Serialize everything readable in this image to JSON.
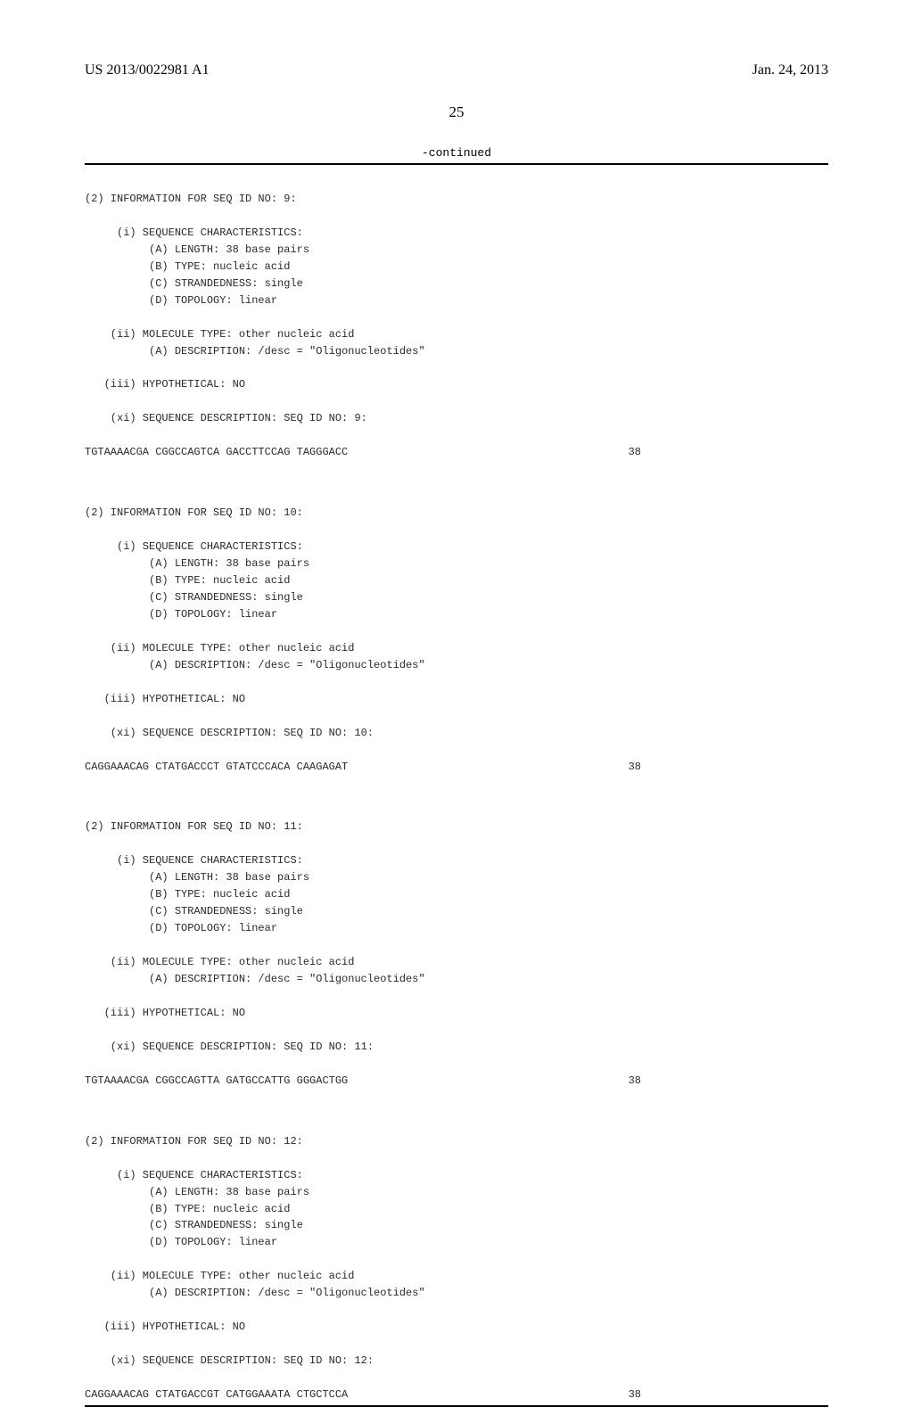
{
  "header": {
    "pub_number": "US 2013/0022981 A1",
    "pub_date": "Jan. 24, 2013"
  },
  "page_number": "25",
  "continued_label": "-continued",
  "sequences": [
    {
      "info_header": "(2) INFORMATION FOR SEQ ID NO: 9:",
      "char_header": "     (i) SEQUENCE CHARACTERISTICS:",
      "length": "          (A) LENGTH: 38 base pairs",
      "type": "          (B) TYPE: nucleic acid",
      "strand": "          (C) STRANDEDNESS: single",
      "topology": "          (D) TOPOLOGY: linear",
      "mol_type": "    (ii) MOLECULE TYPE: other nucleic acid",
      "desc": "          (A) DESCRIPTION: /desc = \"Oligonucleotides\"",
      "hypothetical": "   (iii) HYPOTHETICAL: NO",
      "seq_desc": "    (xi) SEQUENCE DESCRIPTION: SEQ ID NO: 9:",
      "sequence": "TGTAAAACGA CGGCCAGTCA GACCTTCCAG TAGGGACC",
      "seq_length": "38"
    },
    {
      "info_header": "(2) INFORMATION FOR SEQ ID NO: 10:",
      "char_header": "     (i) SEQUENCE CHARACTERISTICS:",
      "length": "          (A) LENGTH: 38 base pairs",
      "type": "          (B) TYPE: nucleic acid",
      "strand": "          (C) STRANDEDNESS: single",
      "topology": "          (D) TOPOLOGY: linear",
      "mol_type": "    (ii) MOLECULE TYPE: other nucleic acid",
      "desc": "          (A) DESCRIPTION: /desc = \"Oligonucleotides\"",
      "hypothetical": "   (iii) HYPOTHETICAL: NO",
      "seq_desc": "    (xi) SEQUENCE DESCRIPTION: SEQ ID NO: 10:",
      "sequence": "CAGGAAACAG CTATGACCCT GTATCCCACA CAAGAGAT",
      "seq_length": "38"
    },
    {
      "info_header": "(2) INFORMATION FOR SEQ ID NO: 11:",
      "char_header": "     (i) SEQUENCE CHARACTERISTICS:",
      "length": "          (A) LENGTH: 38 base pairs",
      "type": "          (B) TYPE: nucleic acid",
      "strand": "          (C) STRANDEDNESS: single",
      "topology": "          (D) TOPOLOGY: linear",
      "mol_type": "    (ii) MOLECULE TYPE: other nucleic acid",
      "desc": "          (A) DESCRIPTION: /desc = \"Oligonucleotides\"",
      "hypothetical": "   (iii) HYPOTHETICAL: NO",
      "seq_desc": "    (xi) SEQUENCE DESCRIPTION: SEQ ID NO: 11:",
      "sequence": "TGTAAAACGA CGGCCAGTTA GATGCCATTG GGGACTGG",
      "seq_length": "38"
    },
    {
      "info_header": "(2) INFORMATION FOR SEQ ID NO: 12:",
      "char_header": "     (i) SEQUENCE CHARACTERISTICS:",
      "length": "          (A) LENGTH: 38 base pairs",
      "type": "          (B) TYPE: nucleic acid",
      "strand": "          (C) STRANDEDNESS: single",
      "topology": "          (D) TOPOLOGY: linear",
      "mol_type": "    (ii) MOLECULE TYPE: other nucleic acid",
      "desc": "          (A) DESCRIPTION: /desc = \"Oligonucleotides\"",
      "hypothetical": "   (iii) HYPOTHETICAL: NO",
      "seq_desc": "    (xi) SEQUENCE DESCRIPTION: SEQ ID NO: 12:",
      "sequence": "CAGGAAACAG CTATGACCGT CATGGAAATA CTGCTCCA",
      "seq_length": "38"
    }
  ]
}
